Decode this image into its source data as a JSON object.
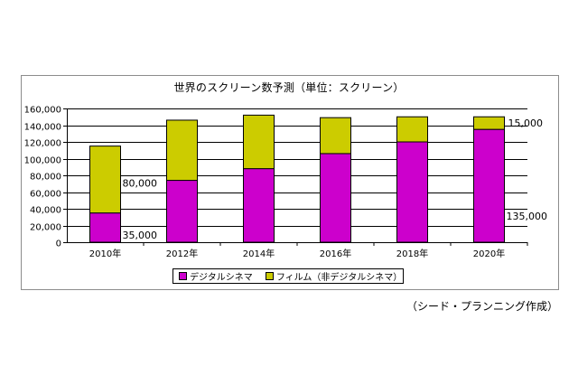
{
  "chart_data": {
    "type": "bar",
    "stacked": true,
    "title": "世界のスクリーン数予測（単位：スクリーン）",
    "categories": [
      "2010年",
      "2012年",
      "2014年",
      "2016年",
      "2018年",
      "2020年"
    ],
    "series": [
      {
        "name": "デジタルシネマ",
        "color": "#cc00cc",
        "values": [
          35000,
          74000,
          88000,
          106000,
          120000,
          135000
        ]
      },
      {
        "name": "フィルム（非デジタルシネマ）",
        "color": "#cccc00",
        "values": [
          80000,
          72000,
          64000,
          43000,
          30000,
          15000
        ]
      }
    ],
    "ylim": [
      0,
      160000
    ],
    "yticks": [
      "0",
      "20,000",
      "40,000",
      "60,000",
      "80,000",
      "100,000",
      "120,000",
      "140,000",
      "160,000"
    ],
    "grid": true,
    "legend_position": "bottom",
    "annotations": [
      {
        "text": "80,000"
      },
      {
        "text": "35,000"
      },
      {
        "text": "15,000"
      },
      {
        "text": "135,000"
      }
    ]
  },
  "source_note": "（シード・プランニング作成）"
}
